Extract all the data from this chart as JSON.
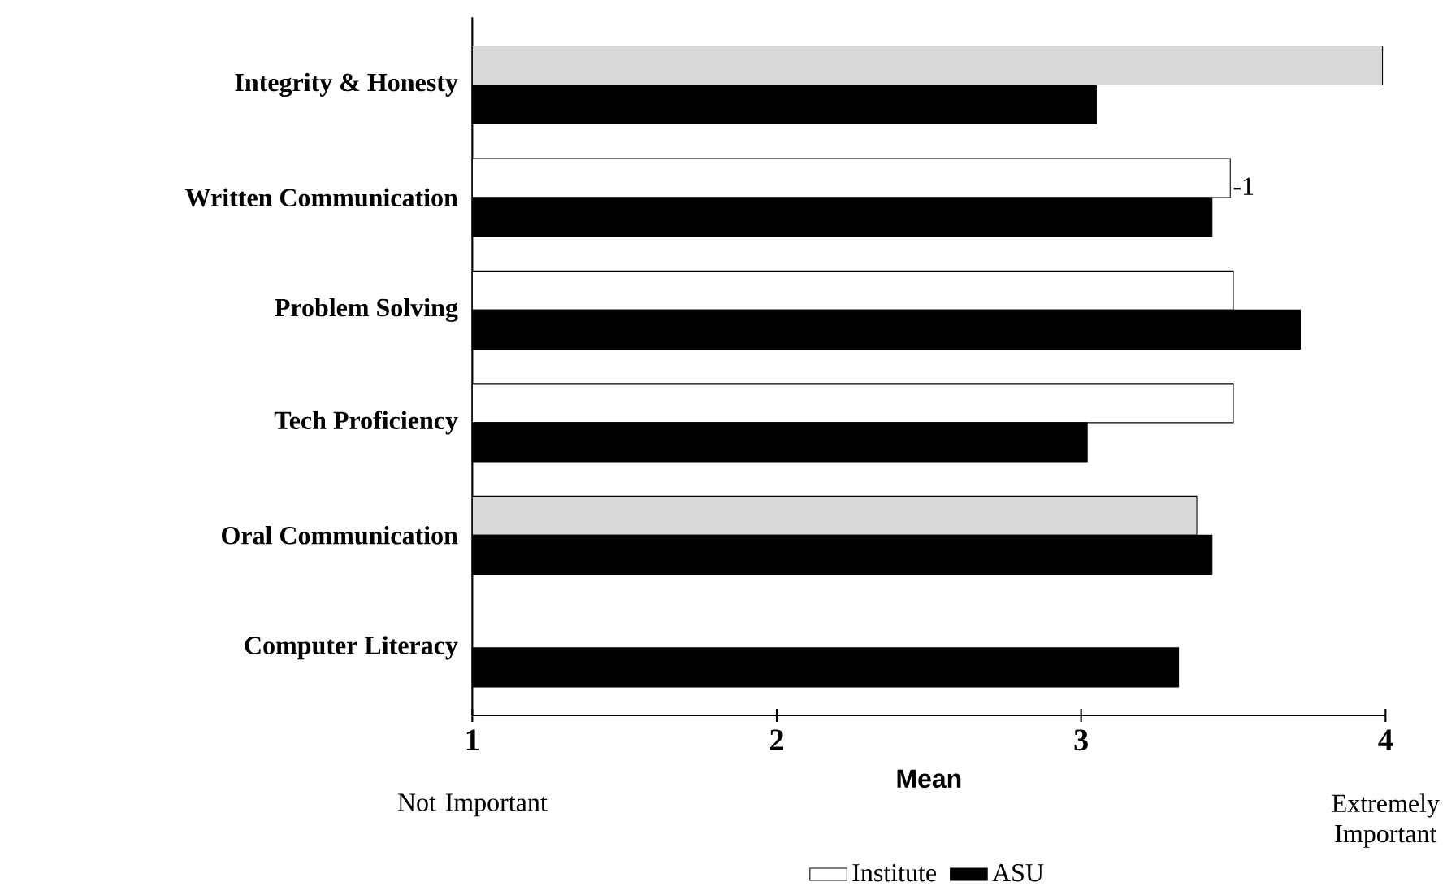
{
  "chart_data": {
    "type": "bar",
    "orientation": "horizontal",
    "xlabel": "Mean",
    "categories": [
      "Integrity & Honesty",
      "Written Communication",
      "Problem Solving",
      "Tech Proficiency",
      "Oral Communication",
      "Computer Literacy"
    ],
    "series": [
      {
        "name": "Institute",
        "color": "#ffffff",
        "colors": [
          "#d9d9d9",
          "#ffffff",
          "#ffffff",
          "#ffffff",
          "#d9d9d9",
          "#ffffff"
        ],
        "values": [
          3.99,
          3.49,
          3.5,
          3.5,
          3.38,
          null
        ]
      },
      {
        "name": "ASU",
        "color": "#000000",
        "values": [
          3.05,
          3.43,
          3.72,
          3.02,
          3.43,
          3.32
        ]
      }
    ],
    "xlim": [
      1,
      4
    ],
    "xticks": [
      1,
      2,
      3,
      4
    ],
    "legend": "bottom",
    "annotations": [
      "Not Important",
      "Extremely Important",
      "-1"
    ]
  }
}
